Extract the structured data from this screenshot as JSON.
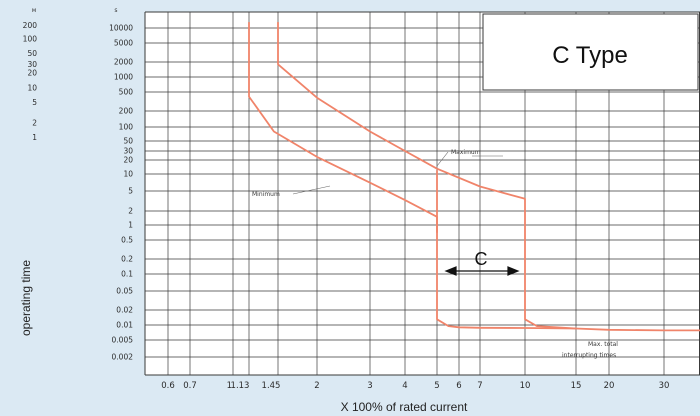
{
  "chart_data": {
    "type": "line",
    "title": "C Type",
    "xlabel": "X 100% of rated current",
    "ylabel": "operating time",
    "scale": "log-log",
    "grid": true,
    "x_ticks": [
      "0.6",
      "0.7",
      "1",
      "1.13",
      "1.45",
      "2",
      "3",
      "4",
      "5",
      "6",
      "7",
      "10",
      "15",
      "20",
      "30"
    ],
    "x_tick_values": [
      0.6,
      0.7,
      1,
      1.13,
      1.45,
      2,
      3,
      4,
      5,
      6,
      7,
      10,
      15,
      20,
      30
    ],
    "y_unit_minutes": "м",
    "y_unit_seconds": "s",
    "y_ticks_seconds": [
      "10000",
      "5000",
      "2000",
      "1000",
      "500",
      "200",
      "100",
      "50",
      "30",
      "20",
      "10",
      "5",
      "2",
      "1",
      "0.5",
      "0.2",
      "0.1",
      "0.05",
      "0.02",
      "0.01",
      "0.005",
      "0.002"
    ],
    "y_tick_values_seconds": [
      10000,
      5000,
      2000,
      1000,
      500,
      200,
      100,
      50,
      30,
      20,
      10,
      5,
      2,
      1,
      0.5,
      0.2,
      0.1,
      0.05,
      0.02,
      0.01,
      0.005,
      0.002
    ],
    "y_ticks_minutes": [
      "200",
      "100",
      "50",
      "30",
      "20",
      "10",
      "5",
      "2",
      "1"
    ],
    "y_tick_values_minutes": [
      200,
      100,
      50,
      30,
      20,
      10,
      5,
      2,
      1
    ],
    "series": [
      {
        "name": "Minimum",
        "color": "#f0846a",
        "points": [
          [
            1.13,
            15000
          ],
          [
            1.13,
            400
          ],
          [
            1.4,
            80
          ],
          [
            2,
            23
          ],
          [
            3,
            7
          ],
          [
            4,
            3.3
          ],
          [
            5,
            1.5
          ],
          [
            5,
            0.7
          ]
        ]
      },
      {
        "name": "Maximum",
        "color": "#f0846a",
        "points": [
          [
            1.45,
            15000
          ],
          [
            1.45,
            1800
          ],
          [
            2,
            380
          ],
          [
            3,
            80
          ],
          [
            4,
            30
          ],
          [
            5,
            13
          ],
          [
            7,
            6
          ],
          [
            10,
            3.5
          ],
          [
            10,
            0.013
          ],
          [
            11,
            0.0095
          ],
          [
            15,
            0.0085
          ],
          [
            20,
            0.008
          ],
          [
            30,
            0.0078
          ],
          [
            34,
            0.0078
          ]
        ]
      },
      {
        "name": "",
        "color": "#f0846a",
        "points": [
          [
            5,
            12
          ],
          [
            5,
            0.013
          ],
          [
            5.5,
            0.0095
          ],
          [
            6,
            0.009
          ],
          [
            7,
            0.0088
          ],
          [
            10,
            0.0087
          ],
          [
            15,
            0.0085
          ]
        ]
      }
    ],
    "annotations": [
      {
        "text": "Maximum",
        "at": [
          6.5,
          25
        ]
      },
      {
        "text": "Minimum",
        "at": [
          1.6,
          3.6
        ]
      },
      {
        "text": "C",
        "at": [
          7,
          0.3
        ]
      },
      {
        "text": "Max. total",
        "line2": "interrupting times",
        "at": [
          20,
          0.007
        ]
      }
    ]
  }
}
